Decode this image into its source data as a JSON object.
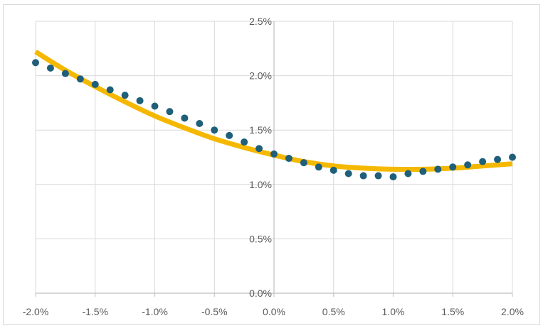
{
  "chart_data": {
    "type": "scatter",
    "title": "",
    "xlabel": "",
    "ylabel": "",
    "xlim": [
      -0.02,
      0.02
    ],
    "ylim": [
      0.0,
      0.025
    ],
    "x_ticks": [
      "-2.0%",
      "-1.5%",
      "-1.0%",
      "-0.5%",
      "0.0%",
      "0.5%",
      "1.0%",
      "1.5%",
      "2.0%"
    ],
    "y_ticks": [
      "0.0%",
      "0.5%",
      "1.0%",
      "1.5%",
      "2.0%",
      "2.5%"
    ],
    "grid": true,
    "legend": "none",
    "series": [
      {
        "kind": "scatter",
        "color": "#1f5f7a",
        "x": [
          -0.02,
          -0.01875,
          -0.0175,
          -0.01625,
          -0.015,
          -0.01375,
          -0.0125,
          -0.01125,
          -0.01,
          -0.00875,
          -0.0075,
          -0.00625,
          -0.005,
          -0.00375,
          -0.0025,
          -0.00125,
          0.0,
          0.00125,
          0.0025,
          0.00375,
          0.005,
          0.00625,
          0.0075,
          0.00875,
          0.01,
          0.01125,
          0.0125,
          0.01375,
          0.015,
          0.01625,
          0.0175,
          0.01875,
          0.02
        ],
        "y": [
          0.0212,
          0.0207,
          0.0202,
          0.0197,
          0.0192,
          0.0187,
          0.0182,
          0.0177,
          0.0172,
          0.0167,
          0.0161,
          0.0156,
          0.015,
          0.0145,
          0.0139,
          0.0133,
          0.0128,
          0.0124,
          0.012,
          0.0116,
          0.0113,
          0.011,
          0.0108,
          0.0108,
          0.0107,
          0.011,
          0.0112,
          0.0114,
          0.0116,
          0.0118,
          0.0121,
          0.0123,
          0.0125
        ]
      },
      {
        "kind": "trendline",
        "color": "#f5b800",
        "x": [
          -0.02,
          -0.0175,
          -0.015,
          -0.0125,
          -0.01,
          -0.0075,
          -0.005,
          -0.0025,
          0.0,
          0.0025,
          0.005,
          0.0075,
          0.01,
          0.0125,
          0.015,
          0.0175,
          0.02
        ],
        "y": [
          0.0222,
          0.0205,
          0.019,
          0.0176,
          0.0163,
          0.0152,
          0.0142,
          0.0134,
          0.0127,
          0.0121,
          0.0117,
          0.0115,
          0.0114,
          0.0114,
          0.0115,
          0.0117,
          0.0119
        ]
      }
    ]
  }
}
